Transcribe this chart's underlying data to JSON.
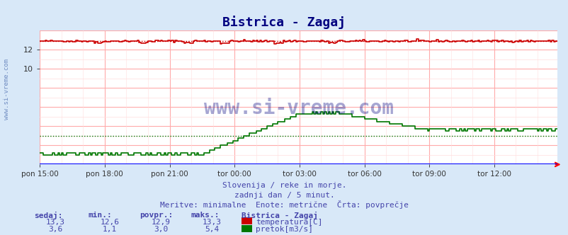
{
  "title": "Bistrica - Zagaj",
  "bg_color": "#d8e8f8",
  "plot_bg_color": "#ffffff",
  "grid_color_major": "#ffaaaa",
  "grid_color_minor": "#ffdddd",
  "x_tick_labels": [
    "pon 15:00",
    "pon 18:00",
    "pon 21:00",
    "tor 00:00",
    "tor 03:00",
    "tor 06:00",
    "tor 09:00",
    "tor 12:00"
  ],
  "x_tick_positions": [
    0,
    36,
    72,
    108,
    144,
    180,
    216,
    252
  ],
  "n_points": 288,
  "y_min": 0,
  "y_max": 14,
  "temp_color": "#cc0000",
  "flow_color": "#007700",
  "watermark": "www.si-vreme.com",
  "subtitle1": "Slovenija / reke in morje.",
  "subtitle2": "zadnji dan / 5 minut.",
  "subtitle3": "Meritve: minimalne  Enote: metrične  Črta: povprečje",
  "footer_color": "#4444aa",
  "temp_sedaj": "13,3",
  "temp_min": "12,6",
  "temp_povpr": "12,9",
  "temp_maks": "13,3",
  "flow_sedaj": "3,6",
  "flow_min": "1,1",
  "flow_povpr": "3,0",
  "flow_maks": "5,4",
  "label_color": "#4444aa",
  "temp_avg": 12.9,
  "flow_avg": 3.0
}
